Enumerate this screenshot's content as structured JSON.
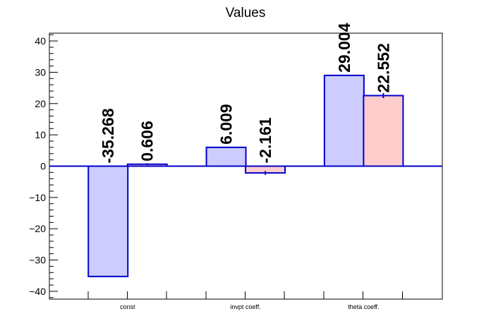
{
  "chart_data": {
    "type": "bar",
    "title": "Values",
    "categories": [
      "const",
      "invpt coeff.",
      "theta coeff."
    ],
    "series": [
      {
        "values": [
          -35.268,
          6.009,
          29.004
        ],
        "color": "#ccccff",
        "edge": "#0000cc"
      },
      {
        "values": [
          0.606,
          -2.161,
          22.552
        ],
        "errors": [
          0.3,
          0.6,
          0.8
        ],
        "color": "#ffcccc",
        "edge": "#0000cc"
      }
    ],
    "data_labels": [
      [
        "-35.268",
        "6.009",
        "29.004"
      ],
      [
        "0.606",
        "-2.161",
        "22.552"
      ]
    ],
    "yticks": [
      40,
      30,
      20,
      10,
      0,
      -10,
      -20,
      -30,
      -40
    ],
    "ytick_labels": [
      "40",
      "30",
      "20",
      "10",
      "0",
      "−10",
      "−20",
      "−30",
      "−40"
    ],
    "ylim": [
      -42.5,
      42.5
    ],
    "xlabel": "",
    "ylabel": "",
    "grid": false,
    "legend": "none"
  }
}
